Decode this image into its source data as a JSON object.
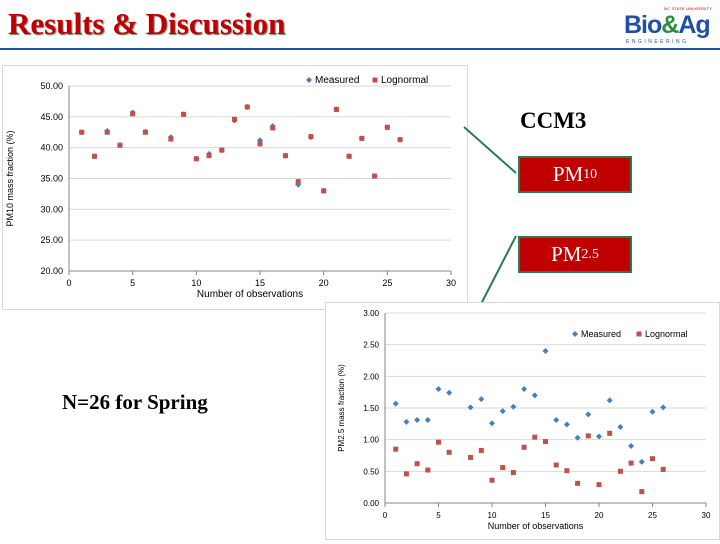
{
  "slide": {
    "title": "Results & Discussion",
    "section_label": "CCM3",
    "box_pm10": {
      "main": "PM",
      "sub": "10"
    },
    "box_pm25": {
      "main": "PM",
      "sub": "2.5"
    },
    "note": "N=26 for Spring",
    "logo": {
      "top": "NC STATE UNIVERSITY",
      "word_a": "Bio",
      "word_amp": "&",
      "word_b": "Ag",
      "sub": "ENGINEERING"
    }
  },
  "colors": {
    "title": "#c00000",
    "rule": "#1f4fa8",
    "measured": "#4a7ebb",
    "lognormal": "#c0504d",
    "box_fill": "#c00000",
    "box_border": "#2a7a52"
  },
  "chart_data": [
    {
      "type": "scatter",
      "xlabel": "Number of observations",
      "ylabel": "PM10 mass fraction (%)",
      "xlim": [
        0,
        30
      ],
      "ylim": [
        20,
        50
      ],
      "xticks": [
        0,
        5,
        10,
        15,
        20,
        25,
        30
      ],
      "yticks": [
        "20.00",
        "25.00",
        "30.00",
        "35.00",
        "40.00",
        "45.00",
        "50.00"
      ],
      "grid": "horizontal",
      "legend_position": "top-right",
      "series": [
        {
          "name": "Measured",
          "marker": "diamond",
          "x": [
            1,
            2,
            3,
            4,
            5,
            6,
            8,
            9,
            10,
            11,
            12,
            13,
            14,
            15,
            16,
            17,
            18,
            19,
            20,
            21,
            22,
            23,
            24,
            25,
            26
          ],
          "y": [
            42.5,
            38.6,
            42.7,
            40.4,
            45.7,
            42.6,
            41.7,
            45.4,
            38.2,
            39.0,
            39.6,
            44.4,
            46.6,
            41.2,
            43.5,
            38.7,
            34.0,
            41.7,
            33.0,
            46.2,
            38.6,
            41.5,
            35.4,
            43.3,
            41.3
          ]
        },
        {
          "name": "Lognormal",
          "marker": "square",
          "x": [
            1,
            2,
            3,
            4,
            5,
            6,
            8,
            9,
            10,
            11,
            12,
            13,
            14,
            15,
            16,
            17,
            18,
            19,
            20,
            21,
            22,
            23,
            24,
            25,
            26
          ],
          "y": [
            42.5,
            38.6,
            42.5,
            40.4,
            45.5,
            42.5,
            41.4,
            45.4,
            38.2,
            38.7,
            39.6,
            44.6,
            46.6,
            40.6,
            43.2,
            38.7,
            34.5,
            41.8,
            33.0,
            46.2,
            38.6,
            41.5,
            35.4,
            43.3,
            41.3
          ]
        }
      ]
    },
    {
      "type": "scatter",
      "xlabel": "Number of observations",
      "ylabel": "PM2.5 mass fraction (%)",
      "xlim": [
        0,
        30
      ],
      "ylim": [
        0,
        3
      ],
      "xticks": [
        0,
        5,
        10,
        15,
        20,
        25,
        30
      ],
      "yticks": [
        "0.00",
        "0.50",
        "1.00",
        "1.50",
        "2.00",
        "2.50",
        "3.00"
      ],
      "grid": "horizontal",
      "legend_position": "top-right",
      "series": [
        {
          "name": "Measured",
          "marker": "diamond",
          "x": [
            1,
            2,
            3,
            4,
            5,
            6,
            8,
            9,
            10,
            11,
            12,
            13,
            14,
            15,
            16,
            17,
            18,
            19,
            20,
            21,
            22,
            23,
            24,
            25,
            26
          ],
          "y": [
            1.57,
            1.28,
            1.31,
            1.31,
            1.8,
            1.74,
            1.51,
            1.64,
            1.26,
            1.45,
            1.52,
            1.8,
            1.7,
            2.4,
            1.31,
            1.24,
            1.03,
            1.4,
            1.05,
            1.62,
            1.2,
            0.9,
            0.65,
            1.44,
            1.51
          ]
        },
        {
          "name": "Lognormal",
          "marker": "square",
          "x": [
            1,
            2,
            3,
            4,
            5,
            6,
            8,
            9,
            10,
            11,
            12,
            13,
            14,
            15,
            16,
            17,
            18,
            19,
            20,
            21,
            22,
            23,
            24,
            25,
            26
          ],
          "y": [
            0.85,
            0.46,
            0.62,
            0.52,
            0.96,
            0.8,
            0.72,
            0.83,
            0.36,
            0.56,
            0.48,
            0.88,
            1.04,
            0.97,
            0.6,
            0.51,
            0.31,
            1.06,
            0.29,
            1.1,
            0.5,
            0.63,
            0.18,
            0.7,
            0.53
          ]
        }
      ]
    }
  ]
}
